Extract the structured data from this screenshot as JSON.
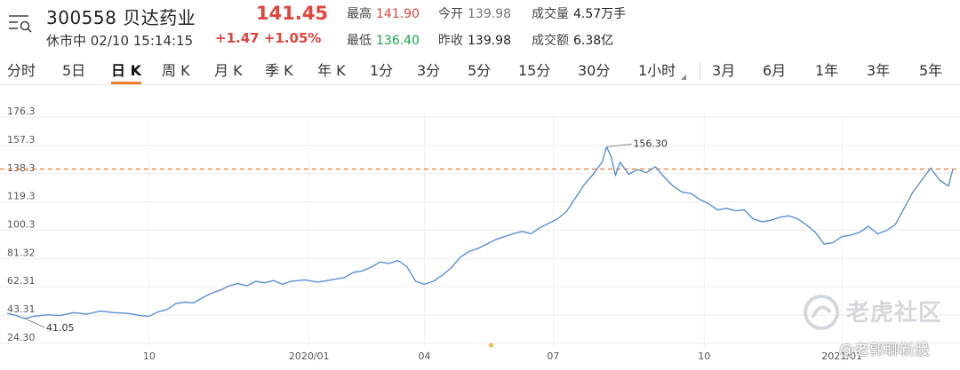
{
  "header": {
    "stock_code": "300558",
    "stock_name": "贝达药业",
    "price": "141.45",
    "status_text": "休市中 02/10 15:14:15",
    "change": "+1.47",
    "change_pct": "+1.05%",
    "high_label": "最高",
    "high_value": "141.90",
    "low_label": "最低",
    "low_value": "136.40",
    "open_label": "今开",
    "open_value": "139.98",
    "prev_close_label": "昨收",
    "prev_close_value": "139.98",
    "volume_label": "成交量",
    "volume_value": "4.57万手",
    "turnover_label": "成交额",
    "turnover_value": "6.38亿",
    "colors": {
      "up": "#e0443c",
      "down": "#17a34a",
      "accent": "#f07c2c",
      "line": "#5b8fd6"
    },
    "menu_icon": "menu-search-icon"
  },
  "tabs": [
    {
      "label": "分时"
    },
    {
      "label": "5日"
    },
    {
      "label": "日 K",
      "active": true
    },
    {
      "label": "周 K"
    },
    {
      "label": "月 K"
    },
    {
      "label": "季 K"
    },
    {
      "label": "年 K"
    },
    {
      "label": "1分"
    },
    {
      "label": "3分"
    },
    {
      "label": "5分"
    },
    {
      "label": "15分"
    },
    {
      "label": "30分"
    },
    {
      "label": "1小时"
    },
    {
      "label": "3月"
    },
    {
      "label": "6月"
    },
    {
      "label": "1年"
    },
    {
      "label": "3年"
    },
    {
      "label": "5年"
    }
  ],
  "chart_data": {
    "type": "line",
    "title": "",
    "xlabel": "",
    "ylabel": "",
    "ylim": [
      24.3,
      176.3
    ],
    "y_ticks": [
      "176.3",
      "157.3",
      "138.3",
      "119.3",
      "100.3",
      "81.32",
      "62.31",
      "43.31",
      "24.30"
    ],
    "x_ticks": [
      "10",
      "2020/01",
      "04",
      "07",
      "10",
      "2021/01"
    ],
    "x_tick_values": [
      0.16,
      0.34,
      0.47,
      0.615,
      0.785,
      0.94
    ],
    "grid": true,
    "current_price_line": 141.45,
    "annotations": [
      {
        "label": "156.30",
        "x": 0.63,
        "y": 156.3
      },
      {
        "label": "41.05",
        "x": 0.02,
        "y": 41.05
      }
    ],
    "series": [
      {
        "points": [
          [
            0.0,
            44.5
          ],
          [
            0.01,
            43.0
          ],
          [
            0.02,
            41.05
          ],
          [
            0.03,
            42.5
          ],
          [
            0.045,
            43.5
          ],
          [
            0.06,
            43.0
          ],
          [
            0.075,
            45.0
          ],
          [
            0.09,
            44.0
          ],
          [
            0.105,
            46.0
          ],
          [
            0.12,
            45.0
          ],
          [
            0.135,
            44.5
          ],
          [
            0.15,
            43.0
          ],
          [
            0.16,
            42.5
          ],
          [
            0.17,
            45.5
          ],
          [
            0.18,
            47.0
          ],
          [
            0.19,
            51.0
          ],
          [
            0.2,
            52.0
          ],
          [
            0.21,
            51.5
          ],
          [
            0.22,
            55.0
          ],
          [
            0.23,
            58.0
          ],
          [
            0.24,
            60.0
          ],
          [
            0.25,
            63.0
          ],
          [
            0.26,
            64.5
          ],
          [
            0.27,
            63.0
          ],
          [
            0.28,
            66.0
          ],
          [
            0.29,
            65.0
          ],
          [
            0.3,
            66.5
          ],
          [
            0.31,
            64.0
          ],
          [
            0.32,
            66.0
          ],
          [
            0.335,
            67.0
          ],
          [
            0.35,
            65.5
          ],
          [
            0.365,
            67.0
          ],
          [
            0.38,
            68.5
          ],
          [
            0.39,
            72.0
          ],
          [
            0.4,
            73.0
          ],
          [
            0.41,
            75.5
          ],
          [
            0.42,
            79.0
          ],
          [
            0.43,
            78.0
          ],
          [
            0.44,
            80.0
          ],
          [
            0.45,
            76.0
          ],
          [
            0.46,
            66.0
          ],
          [
            0.47,
            64.0
          ],
          [
            0.48,
            66.0
          ],
          [
            0.49,
            70.0
          ],
          [
            0.5,
            75.0
          ],
          [
            0.51,
            82.0
          ],
          [
            0.52,
            86.0
          ],
          [
            0.53,
            88.0
          ],
          [
            0.54,
            91.0
          ],
          [
            0.55,
            94.0
          ],
          [
            0.56,
            96.0
          ],
          [
            0.57,
            98.0
          ],
          [
            0.58,
            99.5
          ],
          [
            0.59,
            98.0
          ],
          [
            0.6,
            102.0
          ],
          [
            0.61,
            105.0
          ],
          [
            0.62,
            108.0
          ],
          [
            0.63,
            113.0
          ],
          [
            0.64,
            122.0
          ],
          [
            0.65,
            131.0
          ],
          [
            0.66,
            138.0
          ],
          [
            0.67,
            146.0
          ],
          [
            0.675,
            156.3
          ],
          [
            0.68,
            150.0
          ],
          [
            0.685,
            137.0
          ],
          [
            0.69,
            146.0
          ],
          [
            0.7,
            138.0
          ],
          [
            0.71,
            141.0
          ],
          [
            0.72,
            139.0
          ],
          [
            0.73,
            143.0
          ],
          [
            0.74,
            136.0
          ],
          [
            0.75,
            130.0
          ],
          [
            0.76,
            126.0
          ],
          [
            0.77,
            125.0
          ],
          [
            0.78,
            121.0
          ],
          [
            0.79,
            118.0
          ],
          [
            0.8,
            114.0
          ],
          [
            0.81,
            115.0
          ],
          [
            0.82,
            113.5
          ],
          [
            0.83,
            114.0
          ],
          [
            0.84,
            108.0
          ],
          [
            0.85,
            106.0
          ],
          [
            0.86,
            107.0
          ],
          [
            0.87,
            109.0
          ],
          [
            0.88,
            110.0
          ],
          [
            0.89,
            108.0
          ],
          [
            0.9,
            104.0
          ],
          [
            0.91,
            99.0
          ],
          [
            0.92,
            91.0
          ],
          [
            0.93,
            92.0
          ],
          [
            0.94,
            96.0
          ],
          [
            0.95,
            97.0
          ],
          [
            0.96,
            99.0
          ],
          [
            0.97,
            103.0
          ],
          [
            0.98,
            98.0
          ],
          [
            0.99,
            100.0
          ],
          [
            1.0,
            104.0
          ],
          [
            1.01,
            115.0
          ],
          [
            1.02,
            126.0
          ],
          [
            1.03,
            134.0
          ],
          [
            1.04,
            142.0
          ],
          [
            1.05,
            134.0
          ],
          [
            1.06,
            130.0
          ],
          [
            1.065,
            141.45
          ]
        ]
      }
    ]
  },
  "watermark": {
    "brand": "老虎社区",
    "handle": "@老郭聊新股",
    "logo_icon": "tiger-logo-icon"
  }
}
